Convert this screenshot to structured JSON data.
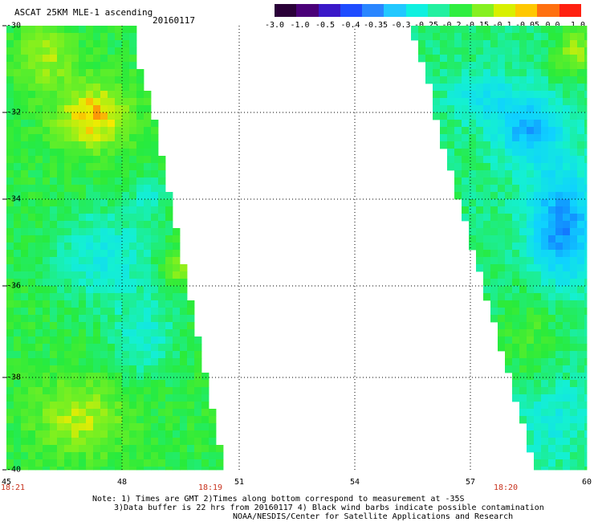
{
  "title": "ASCAT 25KM MLE-1 ascending",
  "date": "20160117",
  "colorbar": {
    "ticks": [
      "-3.0",
      "-1.0",
      "-0.5",
      "-0.4",
      "-0.35",
      "-0.3",
      "-0.25",
      "-0.2",
      "-0.15",
      "-0.1",
      "-0.05",
      "0.0",
      "1.0"
    ],
    "colors": [
      "#2a0038",
      "#4a0078",
      "#3a18c8",
      "#1f4cff",
      "#2a86ff",
      "#22c8ff",
      "#10f0e0",
      "#22f0a0",
      "#30ee40",
      "#86f020",
      "#d8f000",
      "#ffc800",
      "#ff7010",
      "#ff2010"
    ]
  },
  "map": {
    "lon_ticks": [
      "45",
      "48",
      "51",
      "54",
      "57",
      "60"
    ],
    "lat_ticks": [
      "-30",
      "-32",
      "-34",
      "-36",
      "-38",
      "-40"
    ],
    "times": [
      "18:21",
      "18:19",
      "18:20"
    ]
  },
  "notes": {
    "line1": "Note: 1) Times are GMT 2)Times along bottom correspond to measurement at -35S",
    "line2": "3)Data buffer is 22 hrs from 20160117 4) Black wind barbs indicate possible contamination",
    "line3": "NOAA/NESDIS/Center for Satellite Applications and Research"
  }
}
